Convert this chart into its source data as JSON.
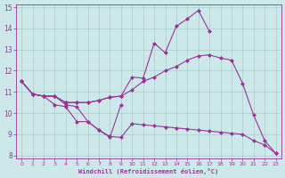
{
  "x": [
    0,
    1,
    2,
    3,
    4,
    5,
    6,
    7,
    8,
    9,
    10,
    11,
    12,
    13,
    14,
    15,
    16,
    17,
    18,
    19,
    20,
    21,
    22,
    23
  ],
  "line1": [
    11.5,
    10.9,
    10.8,
    10.8,
    10.4,
    10.3,
    9.6,
    9.2,
    8.9,
    8.85,
    9.5,
    9.45,
    9.4,
    9.35,
    9.3,
    9.25,
    9.2,
    9.15,
    9.1,
    9.05,
    9.0,
    8.7,
    8.5,
    8.1
  ],
  "line2": [
    11.5,
    10.9,
    10.8,
    10.8,
    10.5,
    10.5,
    10.5,
    10.6,
    10.75,
    10.8,
    11.1,
    11.5,
    11.7,
    12.0,
    12.2,
    12.5,
    12.7,
    12.75,
    12.6,
    12.5,
    11.4,
    9.9,
    8.7,
    8.1
  ],
  "line3": [
    11.5,
    10.9,
    10.8,
    10.8,
    10.5,
    10.5,
    10.5,
    10.6,
    10.75,
    10.8,
    11.7,
    11.65,
    13.3,
    12.85,
    14.1,
    14.45,
    14.85,
    13.85,
    null,
    null,
    null,
    null,
    null,
    null
  ],
  "line4": [
    11.5,
    10.9,
    10.8,
    10.4,
    10.3,
    9.6,
    9.6,
    9.2,
    8.85,
    10.4,
    null,
    null,
    null,
    null,
    null,
    null,
    null,
    null,
    null,
    null,
    null,
    null,
    null,
    null
  ],
  "color": "#993399",
  "bg_color": "#cce8e8",
  "grid_color": "#aacccc",
  "xlabel": "Windchill (Refroidissement éolien,°C)",
  "ylim": [
    8,
    15
  ],
  "xlim": [
    -0.5,
    23.5
  ],
  "yticks": [
    8,
    9,
    10,
    11,
    12,
    13,
    14,
    15
  ],
  "xticks": [
    0,
    1,
    2,
    3,
    4,
    5,
    6,
    7,
    8,
    9,
    10,
    11,
    12,
    13,
    14,
    15,
    16,
    17,
    18,
    19,
    20,
    21,
    22,
    23
  ],
  "marker": "D",
  "markersize": 2.0,
  "linewidth": 0.8
}
